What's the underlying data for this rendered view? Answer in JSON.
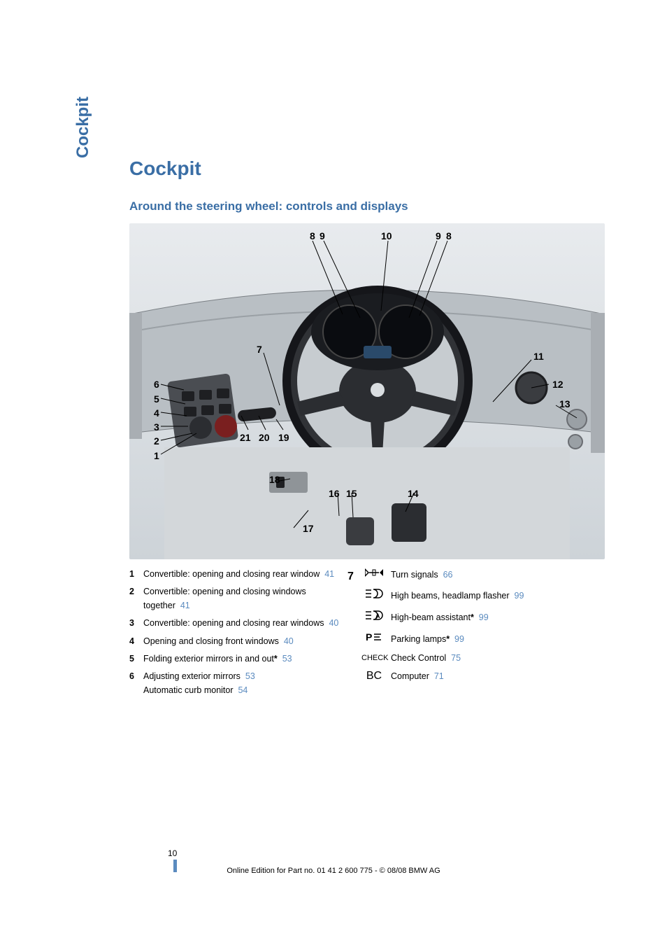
{
  "sidebar_label": "Cockpit",
  "heading": "Cockpit",
  "subheading": "Around the steering wheel: controls and displays",
  "diagram_labels": [
    "1",
    "2",
    "3",
    "4",
    "5",
    "6",
    "7",
    "8",
    "9",
    "10",
    "9",
    "8",
    "11",
    "12",
    "13",
    "14",
    "15",
    "16",
    "17",
    "18",
    "19",
    "20",
    "21"
  ],
  "left_items": [
    {
      "n": "1",
      "text": "Convertible: opening and closing rear window",
      "ref": "41"
    },
    {
      "n": "2",
      "text": "Convertible: opening and closing windows together",
      "ref": "41"
    },
    {
      "n": "3",
      "text": "Convertible: opening and closing rear windows",
      "ref": "40"
    },
    {
      "n": "4",
      "text": "Opening and closing front windows",
      "ref": "40"
    },
    {
      "n": "5",
      "text": "Folding exterior mirrors in and out",
      "star": true,
      "ref": "53"
    },
    {
      "n": "6",
      "lines": [
        {
          "text": "Adjusting exterior mirrors",
          "ref": "53"
        },
        {
          "text": "Automatic curb monitor",
          "ref": "54"
        }
      ]
    }
  ],
  "right_n": "7",
  "right_items": [
    {
      "glyph": "↔",
      "glyph_svg": "turn",
      "text": "Turn signals",
      "ref": "66"
    },
    {
      "glyph": "≡●",
      "glyph_svg": "high",
      "text": "High beams, headlamp flasher",
      "ref": "99"
    },
    {
      "glyph": "≡⤾",
      "glyph_svg": "assist",
      "text": "High-beam assistant",
      "star": true,
      "ref": "99"
    },
    {
      "glyph": "P",
      "glyph_svg": "park",
      "text": "Parking lamps",
      "star": true,
      "ref": "99"
    },
    {
      "glyph": "CHECK",
      "small": true,
      "text": "Check Control",
      "ref": "75"
    },
    {
      "glyph": "BC",
      "text": "Computer",
      "ref": "71"
    }
  ],
  "page_number": "10",
  "footer": "Online Edition for Part no. 01 41 2 600 775 - © 08/08 BMW AG",
  "colors": {
    "heading": "#3a6ea5",
    "link": "#5b8bbf"
  }
}
